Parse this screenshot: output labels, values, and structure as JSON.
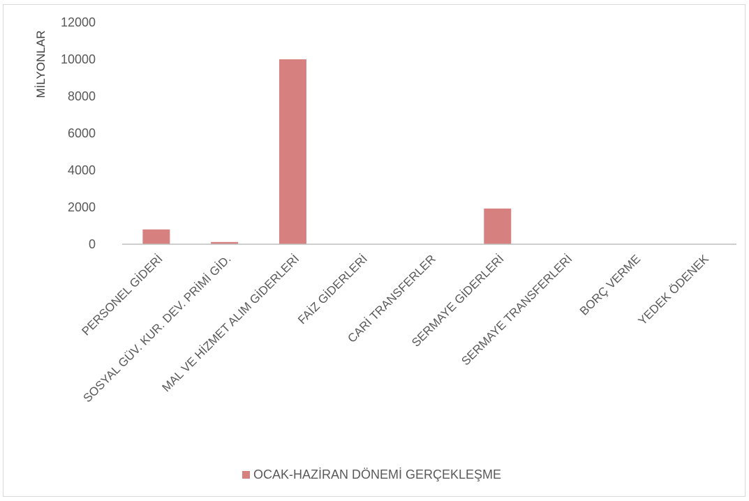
{
  "chart_data": {
    "type": "bar",
    "ylabel": "MİLYONLAR",
    "ylim": [
      0,
      12000
    ],
    "yticks": [
      0,
      2000,
      4000,
      6000,
      8000,
      10000,
      12000
    ],
    "grid": false,
    "legend_position": "bottom",
    "categories": [
      "PERSONEL GİDERİ",
      "SOSYAL GÜV. KUR. DEV. PRİMİ GİD.",
      "MAL VE HİZMET ALIM GİDERLERİ",
      "FAİZ GİDERLERİ",
      "CARİ TRANSFERLER",
      "SERMAYE GİDERLERİ",
      "SERMAYE TRANSFERLERİ",
      "BORÇ VERME",
      "YEDEK ÖDENEK"
    ],
    "series": [
      {
        "name": "OCAK-HAZİRAN DÖNEMİ GERÇEKLEŞME",
        "color": "#d68080",
        "values": [
          800,
          120,
          10000,
          0,
          0,
          1930,
          0,
          0,
          0
        ]
      }
    ]
  }
}
